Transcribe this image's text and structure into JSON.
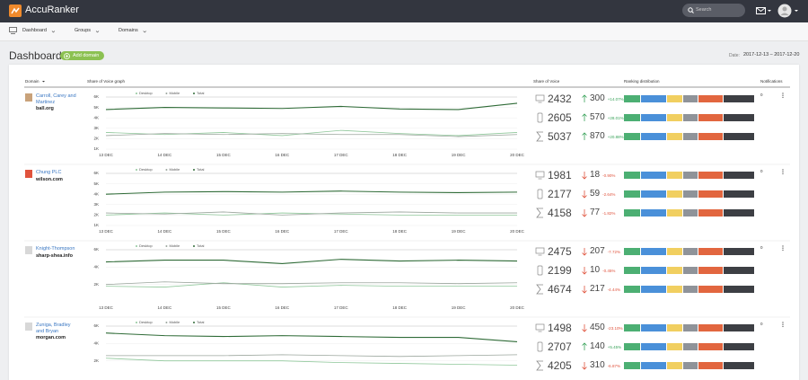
{
  "header": {
    "brand": "AccuRanker",
    "search_placeholder": "Search"
  },
  "nav": [
    "Dashboard",
    "Groups",
    "Domains"
  ],
  "page": {
    "title": "Dashboard",
    "add_button": "Add domain",
    "date_label": "Date:",
    "date_range": "2017-12-13 – 2017-12-20"
  },
  "table": {
    "columns": [
      "Domain",
      "Share of Voice graph",
      "Share of Voice",
      "Ranking distribution",
      "Notifications"
    ],
    "rows": [
      {
        "name": "Carroll, Carey and Martinez",
        "domain": "ball.org",
        "notifications": 0,
        "chart": {
          "type": "line",
          "categories": [
            "13 DEC",
            "14 DEC",
            "15 DEC",
            "16 DEC",
            "17 DEC",
            "18 DEC",
            "19 DEC",
            "20 DEC"
          ],
          "series": [
            {
              "name": "Desktop",
              "color": "#8fc79a",
              "values": [
                2600,
                2400,
                2600,
                2300,
                2800,
                2500,
                2300,
                2600
              ]
            },
            {
              "name": "Mobile",
              "color": "#9aa59c",
              "values": [
                2300,
                2500,
                2400,
                2500,
                2400,
                2400,
                2200,
                2400
              ]
            },
            {
              "name": "Total",
              "color": "#2f6b37",
              "values": [
                4800,
                5000,
                4950,
                4900,
                5100,
                4850,
                4800,
                5400
              ]
            }
          ],
          "ylim": [
            1000,
            6000
          ],
          "yticks": [
            {
              "value": 1000,
              "label": "1K"
            },
            {
              "value": 2000,
              "label": "2K"
            },
            {
              "value": 3000,
              "label": "3K"
            },
            {
              "value": 4000,
              "label": "4K"
            },
            {
              "value": 5000,
              "label": "5K"
            },
            {
              "value": 6000,
              "label": "6K"
            }
          ]
        },
        "share_of_voice": [
          {
            "device": "desktop",
            "value": 2432,
            "trend": "up",
            "change": 300,
            "change_pct": "+14.07%"
          },
          {
            "device": "mobile",
            "value": 2605,
            "trend": "up",
            "change": 570,
            "change_pct": "+28.01%"
          },
          {
            "device": "total",
            "value": 5037,
            "trend": "up",
            "change": 870,
            "change_pct": "+20.88%"
          }
        ]
      },
      {
        "name": "Chung PLC",
        "domain": "wilson.com",
        "notifications": 0,
        "chart": {
          "type": "line",
          "categories": [
            "13 DEC",
            "14 DEC",
            "15 DEC",
            "16 DEC",
            "17 DEC",
            "18 DEC",
            "19 DEC",
            "20 DEC"
          ],
          "series": [
            {
              "name": "Desktop",
              "color": "#8fc79a",
              "values": [
                2000,
                2200,
                2000,
                2200,
                2100,
                2000,
                2000,
                2000
              ]
            },
            {
              "name": "Mobile",
              "color": "#9aa59c",
              "values": [
                2200,
                2100,
                2300,
                2000,
                2200,
                2300,
                2200,
                2200
              ]
            },
            {
              "name": "Total",
              "color": "#2f6b37",
              "values": [
                4000,
                4200,
                4250,
                4200,
                4300,
                4200,
                4150,
                4200
              ]
            }
          ],
          "ylim": [
            1000,
            6000
          ],
          "yticks": [
            {
              "value": 1000,
              "label": "1K"
            },
            {
              "value": 2000,
              "label": "2K"
            },
            {
              "value": 3000,
              "label": "3K"
            },
            {
              "value": 4000,
              "label": "4K"
            },
            {
              "value": 5000,
              "label": "5K"
            },
            {
              "value": 6000,
              "label": "6K"
            }
          ]
        },
        "share_of_voice": [
          {
            "device": "desktop",
            "value": 1981,
            "trend": "down",
            "change": 18,
            "change_pct": "-0.90%"
          },
          {
            "device": "mobile",
            "value": 2177,
            "trend": "down",
            "change": 59,
            "change_pct": "-2.64%"
          },
          {
            "device": "total",
            "value": 4158,
            "trend": "down",
            "change": 77,
            "change_pct": "-1.82%"
          }
        ]
      },
      {
        "name": "Knight-Thompson",
        "domain": "sharp-shea.info",
        "notifications": 0,
        "chart": {
          "type": "line",
          "categories": [
            "13 DEC",
            "14 DEC",
            "15 DEC",
            "16 DEC",
            "17 DEC",
            "18 DEC",
            "19 DEC",
            "20 DEC"
          ],
          "series": [
            {
              "name": "Desktop",
              "color": "#8fc79a",
              "values": [
                1800,
                1700,
                2200,
                1700,
                1900,
                1800,
                1800,
                1800
              ]
            },
            {
              "name": "Mobile",
              "color": "#9aa59c",
              "values": [
                2000,
                2300,
                2100,
                2100,
                2200,
                2200,
                2100,
                2200
              ]
            },
            {
              "name": "Total",
              "color": "#2f6b37",
              "values": [
                4600,
                4800,
                4800,
                4400,
                4900,
                4700,
                4800,
                4700
              ]
            }
          ],
          "ylim": [
            0,
            6000
          ],
          "yticks": [
            {
              "value": 2000,
              "label": "2K"
            },
            {
              "value": 4000,
              "label": "4K"
            },
            {
              "value": 6000,
              "label": "6K"
            }
          ]
        },
        "share_of_voice": [
          {
            "device": "desktop",
            "value": 2475,
            "trend": "down",
            "change": 207,
            "change_pct": "-7.72%"
          },
          {
            "device": "mobile",
            "value": 2199,
            "trend": "down",
            "change": 10,
            "change_pct": "-0.45%"
          },
          {
            "device": "total",
            "value": 4674,
            "trend": "down",
            "change": 217,
            "change_pct": "-4.44%"
          }
        ]
      },
      {
        "name": "Zuniga, Bradley and Bryan",
        "domain": "morgan.com",
        "notifications": 0,
        "chart": {
          "type": "line",
          "categories": [
            "13 DEC",
            "14 DEC",
            "15 DEC",
            "16 DEC",
            "17 DEC",
            "18 DEC",
            "19 DEC",
            "20 DEC"
          ],
          "series": [
            {
              "name": "Desktop",
              "color": "#8fc79a",
              "values": [
                2300,
                2000,
                2000,
                2000,
                1800,
                1700,
                1600,
                1500
              ]
            },
            {
              "name": "Mobile",
              "color": "#9aa59c",
              "values": [
                2600,
                2600,
                2600,
                2700,
                2600,
                2500,
                2600,
                2700
              ]
            },
            {
              "name": "Total",
              "color": "#2f6b37",
              "values": [
                5200,
                4900,
                4800,
                4900,
                4800,
                4700,
                4700,
                4200
              ]
            }
          ],
          "ylim": [
            0,
            6000
          ],
          "yticks": [
            {
              "value": 2000,
              "label": "2K"
            },
            {
              "value": 4000,
              "label": "4K"
            },
            {
              "value": 6000,
              "label": "6K"
            }
          ]
        },
        "share_of_voice": [
          {
            "device": "desktop",
            "value": 1498,
            "trend": "down",
            "change": 450,
            "change_pct": "-23.10%"
          },
          {
            "device": "mobile",
            "value": 2707,
            "trend": "up",
            "change": 140,
            "change_pct": "+5.45%"
          },
          {
            "device": "total",
            "value": 4205,
            "trend": "down",
            "change": 310,
            "change_pct": "-6.87%"
          }
        ]
      }
    ]
  }
}
